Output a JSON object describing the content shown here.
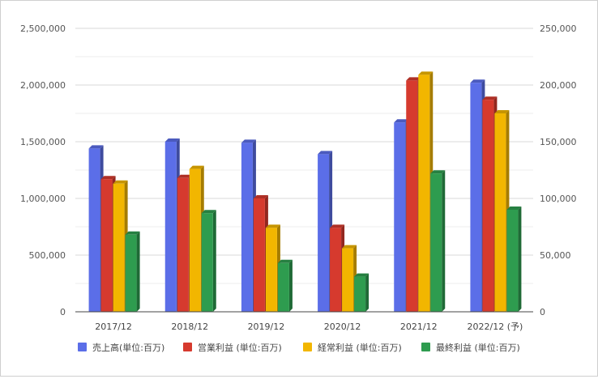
{
  "chart_data": {
    "type": "bar",
    "categories": [
      "2017/12",
      "2018/12",
      "2019/12",
      "2020/12",
      "2021/12",
      "2022/12 (予)"
    ],
    "series": [
      {
        "name": "売上高(単位:百万)",
        "color": "#5b6ee8",
        "axis": "left",
        "values": [
          1440000,
          1500000,
          1490000,
          1390000,
          1670000,
          2020000
        ]
      },
      {
        "name": "営業利益 (単位:百万)",
        "color": "#d63a2e",
        "axis": "right",
        "values": [
          117000,
          118000,
          100000,
          74000,
          204000,
          187000
        ]
      },
      {
        "name": "経常利益 (単位:百万)",
        "color": "#f2b600",
        "axis": "right",
        "values": [
          113000,
          126000,
          74000,
          56000,
          209000,
          175000
        ]
      },
      {
        "name": "最終利益 (単位:百万)",
        "color": "#2e9c4f",
        "axis": "right",
        "values": [
          68000,
          87000,
          43000,
          31000,
          122000,
          90000
        ]
      }
    ],
    "y_left": {
      "ylim": [
        0,
        2500000
      ],
      "ticks": [
        "0",
        "500,000",
        "1,000,000",
        "1,500,000",
        "2,000,000",
        "2,500,000"
      ]
    },
    "y_right": {
      "ylim": [
        0,
        250000
      ],
      "ticks": [
        "0",
        "50,000",
        "100,000",
        "150,000",
        "200,000",
        "250,000"
      ]
    },
    "grid": true,
    "legend": "bottom"
  }
}
